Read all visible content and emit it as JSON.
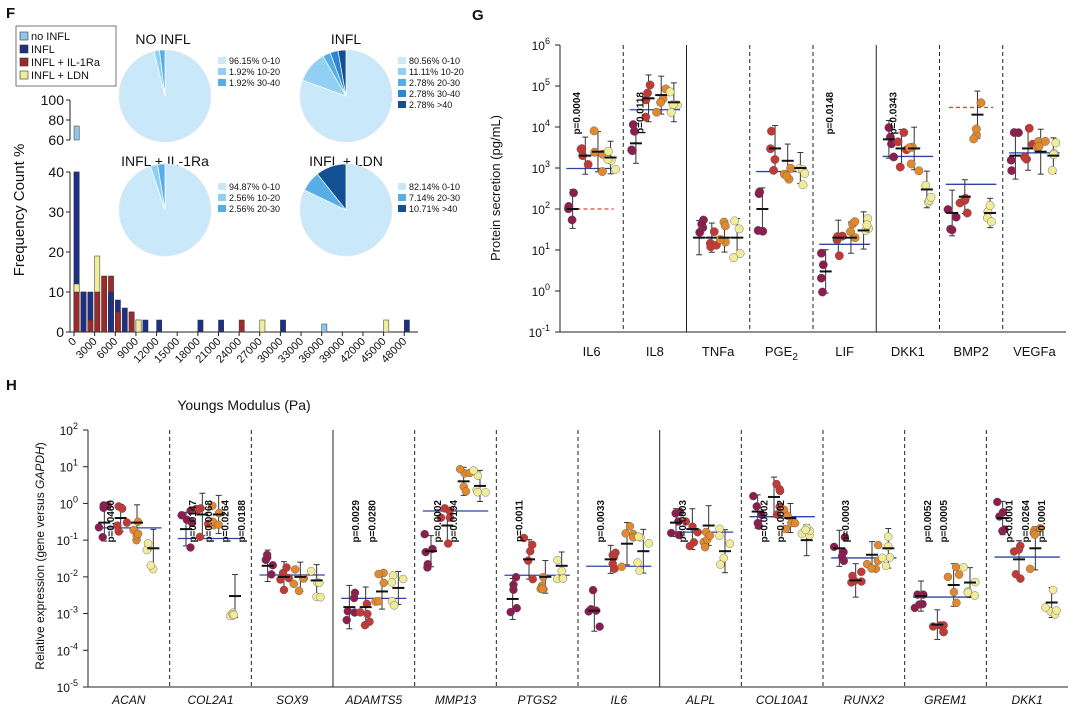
{
  "panels": {
    "f": "F",
    "g": "G",
    "h": "H"
  },
  "colors": {
    "no_infl": "#8fc7ea",
    "infl": "#1f2f86",
    "infl_il1ra": "#9c2a2a",
    "infl_ldn": "#eeee99",
    "pie1": "#c9e9fb",
    "pie2": "#8fd0f3",
    "pie3": "#55aee5",
    "pie4": "#2d86cf",
    "pie5": "#124f93",
    "dot1": "#8b1d4f",
    "dot2": "#c13a37",
    "dot3": "#e0892f",
    "dot4": "#f0ec9a",
    "median": "#2b46a8",
    "ref": "#e0483a"
  },
  "chart_data": [
    {
      "type": "bar",
      "panel": "F",
      "ylabel": "Frequency Count %",
      "xlabel": "Youngs Modulus (Pa)",
      "yticks_upper": [
        "100",
        "80",
        "60"
      ],
      "yticks_lower": [
        "40",
        "30",
        "20",
        "10",
        "0"
      ],
      "xticks": [
        "0",
        "3000",
        "6000",
        "9000",
        "12000",
        "15000",
        "18000",
        "21000",
        "24000",
        "27000",
        "30000",
        "33000",
        "36000",
        "39000",
        "42000",
        "45000",
        "48000"
      ],
      "legend": [
        "no INFL",
        "INFL",
        "INFL + IL-1Ra",
        "INFL + LDN"
      ],
      "legend_position": "top-left",
      "bins": [
        {
          "x": 0,
          "values": [
            74,
            40,
            10,
            12
          ]
        },
        {
          "x": 1000,
          "values": [
            10,
            10,
            0,
            0
          ]
        },
        {
          "x": 2000,
          "values": [
            0,
            10,
            3,
            0
          ]
        },
        {
          "x": 3000,
          "values": [
            0,
            0,
            10,
            19
          ]
        },
        {
          "x": 4000,
          "values": [
            0,
            0,
            14,
            0
          ]
        },
        {
          "x": 5000,
          "values": [
            0,
            10,
            14,
            0
          ]
        },
        {
          "x": 6000,
          "values": [
            0,
            8,
            5,
            0
          ]
        },
        {
          "x": 7000,
          "values": [
            0,
            6,
            0,
            0
          ]
        },
        {
          "x": 8000,
          "values": [
            0,
            5,
            5,
            0
          ]
        },
        {
          "x": 9000,
          "values": [
            0,
            3,
            0,
            3
          ]
        },
        {
          "x": 10000,
          "values": [
            0,
            3,
            0,
            0
          ]
        },
        {
          "x": 12000,
          "values": [
            0,
            3,
            0,
            0
          ]
        },
        {
          "x": 18000,
          "values": [
            0,
            3,
            0,
            0
          ]
        },
        {
          "x": 21000,
          "values": [
            0,
            3,
            0,
            0
          ]
        },
        {
          "x": 24000,
          "values": [
            0,
            0,
            3,
            0
          ]
        },
        {
          "x": 27000,
          "values": [
            0,
            0,
            0,
            3
          ]
        },
        {
          "x": 30000,
          "values": [
            0,
            3,
            0,
            0
          ]
        },
        {
          "x": 36000,
          "values": [
            2,
            0,
            0,
            0
          ]
        },
        {
          "x": 45000,
          "values": [
            0,
            0,
            0,
            3
          ]
        },
        {
          "x": 48000,
          "values": [
            0,
            3,
            0,
            0
          ]
        }
      ]
    },
    {
      "type": "pie",
      "title": "NO INFL",
      "slices": [
        {
          "label": "96.15% 0-10",
          "value": 96.15
        },
        {
          "label": "1.92% 10-20",
          "value": 1.92
        },
        {
          "label": "1.92% 30-40",
          "value": 1.92
        }
      ]
    },
    {
      "type": "pie",
      "title": "INFL",
      "slices": [
        {
          "label": "80.56% 0-10",
          "value": 80.56
        },
        {
          "label": "11.11% 10-20",
          "value": 11.11
        },
        {
          "label": "2.78% 20-30",
          "value": 2.78
        },
        {
          "label": "2.78% 30-40",
          "value": 2.78
        },
        {
          "label": "2.78% >40",
          "value": 2.78
        }
      ]
    },
    {
      "type": "pie",
      "title": "INFL + IL-1Ra",
      "slices": [
        {
          "label": "94.87% 0-10",
          "value": 94.87
        },
        {
          "label": "2.56% 10-20",
          "value": 2.56
        },
        {
          "label": "2.56% 20-30",
          "value": 2.56
        }
      ]
    },
    {
      "type": "pie",
      "title": "INFL + LDN",
      "slices": [
        {
          "label": "82.14% 0-10",
          "value": 82.14
        },
        {
          "label": "7.14% 20-30",
          "value": 7.14
        },
        {
          "label": "10.71% >40",
          "value": 10.71
        }
      ]
    },
    {
      "type": "scatter",
      "panel": "G",
      "ylabel": "Protein secretion (pg/mL)",
      "yscale": "log",
      "ylim": [
        0.1,
        1000000
      ],
      "yticks": [
        {
          "v": 1000000,
          "base": "10",
          "exp": "6"
        },
        {
          "v": 100000,
          "base": "10",
          "exp": "5"
        },
        {
          "v": 10000,
          "base": "10",
          "exp": "4"
        },
        {
          "v": 1000,
          "base": "10",
          "exp": "3"
        },
        {
          "v": 100,
          "base": "10",
          "exp": "2"
        },
        {
          "v": 10,
          "base": "10",
          "exp": "1"
        },
        {
          "v": 1,
          "base": "10",
          "exp": "0"
        },
        {
          "v": 0.1,
          "base": "10",
          "exp": "-1"
        }
      ],
      "groups": [
        {
          "label": "IL6",
          "medians": [
            100,
            2000,
            2500,
            1800
          ],
          "pvalues": [
            "p=0.0004"
          ],
          "ref": 100
        },
        {
          "label": "IL8",
          "medians": [
            4000,
            50000,
            60000,
            40000
          ],
          "pvalues": [
            "p=0.0118"
          ]
        },
        {
          "label": "TNFa",
          "medians": [
            20,
            20,
            20,
            20
          ],
          "pvalues": []
        },
        {
          "label": "PGE2",
          "label_main": "PGE",
          "label_sub": "2",
          "medians": [
            100,
            3000,
            1500,
            1000
          ],
          "pvalues": []
        },
        {
          "label": "LIF",
          "medians": [
            3,
            20,
            20,
            30
          ],
          "pvalues": [
            "p=0.0148"
          ]
        },
        {
          "label": "DKK1",
          "medians": [
            5000,
            3000,
            3000,
            300
          ],
          "pvalues": [
            "p=0.0343"
          ]
        },
        {
          "label": "BMP2",
          "medians": [
            80,
            200,
            20000,
            80
          ],
          "pvalues": [],
          "ref": 30000
        },
        {
          "label": "VEGFa",
          "medians": [
            2000,
            3000,
            2500,
            2000
          ],
          "pvalues": []
        }
      ]
    },
    {
      "type": "scatter",
      "panel": "H",
      "ylabel_prefix": "Relative expression (gene versus ",
      "ylabel_gene": "GAPDH",
      "ylabel_suffix": ")",
      "yscale": "log",
      "ylim": [
        1e-05,
        100
      ],
      "yticks": [
        {
          "v": 100,
          "base": "10",
          "exp": "2"
        },
        {
          "v": 10,
          "base": "10",
          "exp": "1"
        },
        {
          "v": 1,
          "base": "10",
          "exp": "0"
        },
        {
          "v": 0.1,
          "base": "10",
          "exp": "-1"
        },
        {
          "v": 0.01,
          "base": "10",
          "exp": "-2"
        },
        {
          "v": 0.001,
          "base": "10",
          "exp": "-3"
        },
        {
          "v": 0.0001,
          "base": "10",
          "exp": "-4"
        },
        {
          "v": 1e-05,
          "base": "10",
          "exp": "-5"
        }
      ],
      "groups": [
        {
          "label": "ACAN",
          "medians": [
            0.3,
            0.4,
            0.3,
            0.06
          ],
          "pvalues": [
            "p=0.0460"
          ]
        },
        {
          "label": "COL2A1",
          "medians": [
            0.2,
            0.5,
            0.5,
            0.003
          ],
          "pvalues": [
            "p=0.0147",
            "p=0.0068",
            "p=0.0264",
            "p=0.0188"
          ]
        },
        {
          "label": "SOX9",
          "medians": [
            0.02,
            0.01,
            0.01,
            0.008
          ],
          "pvalues": []
        },
        {
          "label": "ADAMTS5",
          "medians": [
            0.0015,
            0.0015,
            0.004,
            0.005
          ],
          "pvalues": [
            "p=0.0029",
            "p=0.0280"
          ]
        },
        {
          "label": "MMP13",
          "medians": [
            0.05,
            0.25,
            4,
            3
          ],
          "pvalues": [
            "p=0.0002",
            "p=0.0194"
          ]
        },
        {
          "label": "PTGS2",
          "medians": [
            0.0025,
            0.03,
            0.01,
            0.02
          ],
          "pvalues": [
            "p=0.0011"
          ]
        },
        {
          "label": "IL6",
          "medians": [
            0.0012,
            0.03,
            0.08,
            0.05
          ],
          "pvalues": [
            "p=0.0033"
          ]
        },
        {
          "label": "ALPL",
          "medians": [
            0.3,
            0.2,
            0.25,
            0.05
          ],
          "pvalues": [
            "p=0.0003"
          ]
        },
        {
          "label": "COL10A1",
          "medians": [
            0.6,
            1.5,
            0.4,
            0.1
          ],
          "pvalues": [
            "p=0.0002",
            "p=0.0002"
          ]
        },
        {
          "label": "RUNX2",
          "medians": [
            0.06,
            0.008,
            0.04,
            0.06
          ],
          "pvalues": [
            "p=0.0003"
          ]
        },
        {
          "label": "GREM1",
          "medians": [
            0.003,
            0.0005,
            0.006,
            0.007
          ],
          "pvalues": [
            "p=0.0052",
            "p=0.0005"
          ]
        },
        {
          "label": "DKK1",
          "medians": [
            0.4,
            0.03,
            0.06,
            0.002
          ],
          "pvalues": [
            "p<0.0001",
            "p=0.0264",
            "p=0.0001"
          ]
        }
      ]
    }
  ]
}
